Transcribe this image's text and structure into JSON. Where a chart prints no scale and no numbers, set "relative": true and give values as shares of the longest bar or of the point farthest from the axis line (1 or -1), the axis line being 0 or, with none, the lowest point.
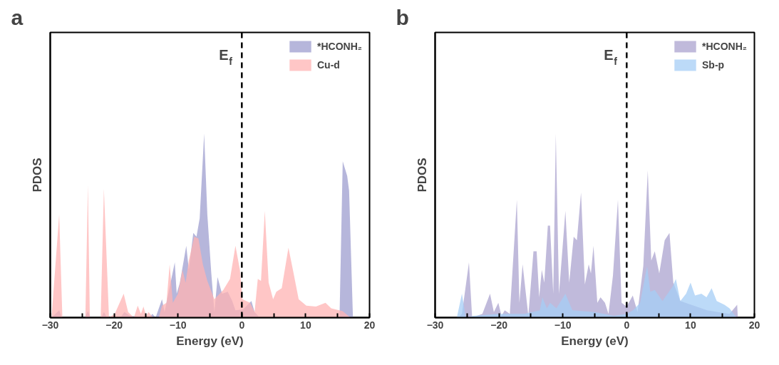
{
  "chart_data": [
    {
      "type": "area",
      "title": "a",
      "xlabel": "Energy (eV)",
      "ylabel": "PDOS",
      "relative": true,
      "xlim": [
        -30,
        20
      ],
      "xticks": [
        -30,
        {
          "value": -25,
          "label": null
        },
        -20,
        {
          "value": -15,
          "label": null
        },
        -10,
        {
          "value": -5,
          "label": null
        },
        0,
        {
          "value": 5,
          "label": null
        },
        10,
        {
          "value": 15,
          "label": null
        },
        20
      ],
      "grid": false,
      "legend": "top right",
      "ref_lines": [
        {
          "axis": "x",
          "value": 0,
          "label": "E$_{f}$",
          "color": "#000000",
          "line_style": "dashed"
        }
      ],
      "series": [
        {
          "name": "*HCONH₂",
          "color": "#9d9dcf",
          "x": [
            -29.8,
            -28.6,
            -28.2,
            -24.6,
            -24.1,
            -23.7,
            -22.0,
            -21.6,
            -21.1,
            -19.0,
            -18.4,
            -17.5,
            -14.5,
            -14.0,
            -13.5,
            -12.5,
            -12.1,
            -10.5,
            -10.2,
            -9.7,
            -8.7,
            -8.3,
            -7.6,
            -7.1,
            -6.6,
            -5.9,
            -5.4,
            -4.8,
            -4.3,
            -3.8,
            -3.1,
            -2.2,
            -1.5,
            -1.0,
            0.2,
            1.5,
            2.0,
            2.8,
            15.3,
            15.8,
            16.5,
            16.8,
            17.4
          ],
          "values": [
            0,
            0.04,
            0,
            0,
            0.035,
            0,
            0,
            0.03,
            0,
            0,
            0.03,
            0.01,
            0,
            0.02,
            0,
            0.1,
            0.03,
            0.3,
            0.13,
            0.19,
            0.39,
            0.26,
            0.46,
            0.44,
            0.54,
            1.0,
            0.56,
            0.25,
            0.03,
            0.22,
            0.13,
            0.14,
            0.09,
            0.04,
            0.045,
            0.09,
            0.03,
            0,
            0,
            0.85,
            0.77,
            0.69,
            0
          ]
        },
        {
          "name": "Cu-d",
          "color": "#ffb3b3",
          "x": [
            -29.8,
            -28.6,
            -28.1,
            -24.5,
            -24.1,
            -23.8,
            -22.1,
            -21.6,
            -20.8,
            -19.9,
            -18.5,
            -17.8,
            -16.9,
            -16.3,
            -15.8,
            -15.4,
            -15.0,
            -14.6,
            -13.9,
            -13.0,
            -12.5,
            -11.8,
            -11.3,
            -10.8,
            -10.0,
            -9.3,
            -8.8,
            -8.3,
            -7.45,
            -6.8,
            -6.1,
            -5.4,
            -4.3,
            -2.9,
            -1.85,
            -1.0,
            -0.3,
            0.1,
            1.3,
            2.0,
            2.5,
            3.0,
            3.6,
            4.2,
            4.9,
            5.4,
            6.25,
            7.3,
            8.0,
            8.9,
            10.1,
            11.6,
            13.1,
            14.0,
            15.8,
            17.0
          ],
          "values": [
            0,
            0.56,
            0,
            0,
            0.72,
            0,
            0,
            0.7,
            0,
            0.02,
            0.13,
            0.03,
            0,
            0.065,
            0.02,
            0.06,
            0.01,
            0.03,
            0,
            0,
            0.065,
            0.08,
            0.29,
            0.08,
            0.13,
            0.26,
            0.19,
            0.31,
            0.44,
            0.43,
            0.29,
            0.2,
            0.1,
            0.15,
            0.21,
            0.39,
            0.26,
            0.1,
            0.08,
            0.03,
            0.21,
            0.2,
            0.58,
            0.19,
            0.1,
            0.14,
            0.16,
            0.38,
            0.26,
            0.1,
            0.065,
            0.06,
            0.08,
            0.05,
            0.035,
            0
          ]
        }
      ]
    },
    {
      "type": "area",
      "title": "b",
      "xlabel": "Energy (eV)",
      "ylabel": "PDOS",
      "relative": true,
      "xlim": [
        -30,
        20
      ],
      "xticks": [
        -30,
        {
          "value": -25,
          "label": null
        },
        -20,
        {
          "value": -15,
          "label": null
        },
        -10,
        {
          "value": -5,
          "label": null
        },
        0,
        {
          "value": 5,
          "label": null
        },
        10,
        {
          "value": 15,
          "label": null
        },
        20
      ],
      "grid": false,
      "legend": "top right",
      "ref_lines": [
        {
          "axis": "x",
          "value": 0,
          "label": "E$_{f}$",
          "color": "#000000",
          "line_style": "dashed"
        }
      ],
      "series": [
        {
          "name": "*HCONH₂",
          "color": "#aba3cf",
          "x": [
            -26.4,
            -25.8,
            -24.7,
            -24.2,
            -22.6,
            -21.4,
            -20.8,
            -20.1,
            -19.6,
            -19.1,
            -18.3,
            -17.2,
            -16.8,
            -16.3,
            -15.4,
            -14.6,
            -14.1,
            -13.7,
            -13.3,
            -12.9,
            -12.35,
            -12.0,
            -11.5,
            -11.1,
            -10.6,
            -9.6,
            -9.0,
            -8.3,
            -7.8,
            -7.15,
            -6.55,
            -5.95,
            -5.6,
            -5.2,
            -4.6,
            -4.1,
            -3.4,
            -2.85,
            -2.15,
            -1.37,
            -0.8,
            0.0,
            0.95,
            1.7,
            2.6,
            3.3,
            3.85,
            4.4,
            5.1,
            5.95,
            6.7,
            7.3,
            8.4,
            10.1,
            12.6,
            16.1,
            17.3,
            17.4
          ],
          "values": [
            0,
            0.02,
            0.3,
            0,
            0.02,
            0.13,
            0.03,
            0.08,
            0.01,
            0.04,
            0.02,
            0.64,
            0.08,
            0.29,
            0.01,
            0.36,
            0.36,
            0.11,
            0.26,
            0.19,
            0.5,
            0.5,
            0.13,
            1.0,
            0.13,
            0.58,
            0.19,
            0.44,
            0.42,
            0.68,
            0.18,
            0.29,
            0.24,
            0.39,
            0.08,
            0.11,
            0.08,
            0.02,
            0.23,
            0.64,
            0.08,
            0.06,
            0.12,
            0.03,
            0.28,
            0.8,
            0.31,
            0.36,
            0.24,
            0.42,
            0.46,
            0.19,
            0.09,
            0.07,
            0.04,
            0.02,
            0.07,
            0
          ]
        },
        {
          "name": "Sb-p",
          "color": "#a6cdf5",
          "x": [
            -26.6,
            -25.8,
            -25.2,
            -24.0,
            -20.0,
            -16.0,
            -13.6,
            -13.2,
            -12.5,
            -12.0,
            -11.0,
            -9.6,
            -8.5,
            -5.0,
            -2.0,
            0.0,
            1.0,
            2.1,
            3.2,
            3.7,
            4.4,
            5.6,
            7.2,
            7.7,
            8.4,
            9.3,
            10.0,
            10.7,
            11.7,
            12.5,
            13.3,
            14.1,
            15.3,
            16.1,
            17.0,
            17.2
          ],
          "values": [
            0,
            0.13,
            0,
            0.01,
            0.02,
            0.02,
            0.04,
            0.11,
            0.05,
            0.08,
            0.05,
            0.13,
            0.04,
            0.03,
            0.01,
            0.02,
            0.04,
            0.08,
            0.28,
            0.14,
            0.15,
            0.09,
            0.17,
            0.21,
            0.09,
            0.13,
            0.19,
            0.12,
            0.13,
            0.11,
            0.16,
            0.09,
            0.07,
            0.05,
            0.01,
            0
          ]
        }
      ]
    }
  ]
}
